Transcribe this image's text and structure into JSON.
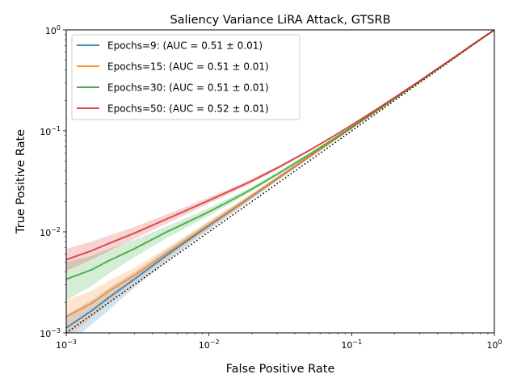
{
  "chart_data": {
    "type": "line",
    "title": "Saliency Variance LiRA Attack, GTSRB",
    "xlabel": "False Positive Rate",
    "ylabel": "True Positive Rate",
    "xscale": "log",
    "yscale": "log",
    "xlim": [
      0.001,
      1
    ],
    "ylim": [
      0.001,
      1
    ],
    "grid": false,
    "legend_position": "top-left",
    "x_ticks": [
      {
        "value": 0.001,
        "base": "10",
        "exp": "−3"
      },
      {
        "value": 0.01,
        "base": "10",
        "exp": "−2"
      },
      {
        "value": 0.1,
        "base": "10",
        "exp": "−1"
      },
      {
        "value": 1,
        "base": "10",
        "exp": "0"
      }
    ],
    "y_ticks": [
      {
        "value": 0.001,
        "base": "10",
        "exp": "−3"
      },
      {
        "value": 0.01,
        "base": "10",
        "exp": "−2"
      },
      {
        "value": 0.1,
        "base": "10",
        "exp": "−1"
      },
      {
        "value": 1,
        "base": "10",
        "exp": "0"
      }
    ],
    "x": [
      0.001,
      0.0015,
      0.002,
      0.003,
      0.005,
      0.007,
      0.01,
      0.015,
      0.02,
      0.03,
      0.05,
      0.07,
      0.1,
      0.15,
      0.2,
      0.3,
      0.5,
      0.7,
      1.0
    ],
    "series": [
      {
        "name": "Epochs=9: (AUC = 0.51 ± 0.01)",
        "color": "#1f77b4",
        "y": [
          0.00112,
          0.00165,
          0.00225,
          0.0034,
          0.0058,
          0.0081,
          0.0115,
          0.017,
          0.0225,
          0.0335,
          0.055,
          0.076,
          0.107,
          0.158,
          0.209,
          0.31,
          0.51,
          0.71,
          1.0
        ],
        "y_low": [
          0.00075,
          0.0012,
          0.0017,
          0.0028,
          0.005,
          0.0072,
          0.0104,
          0.0157,
          0.0211,
          0.0318,
          0.0528,
          0.0736,
          0.1045,
          0.1555,
          0.2065,
          0.307,
          0.507,
          0.707,
          1.0
        ],
        "y_high": [
          0.0015,
          0.0021,
          0.0028,
          0.004,
          0.0066,
          0.009,
          0.0126,
          0.0183,
          0.0239,
          0.0352,
          0.0572,
          0.0784,
          0.1095,
          0.1605,
          0.2115,
          0.313,
          0.513,
          0.713,
          1.0
        ]
      },
      {
        "name": "Epochs=15: (AUC = 0.51 ± 0.01)",
        "color": "#ff7f0e",
        "y": [
          0.00145,
          0.00195,
          0.0026,
          0.0037,
          0.0061,
          0.0084,
          0.0118,
          0.0172,
          0.0227,
          0.0337,
          0.0552,
          0.0762,
          0.1072,
          0.158,
          0.209,
          0.31,
          0.51,
          0.71,
          1.0
        ],
        "y_low": [
          0.0009,
          0.0014,
          0.002,
          0.0031,
          0.0053,
          0.0075,
          0.0107,
          0.0159,
          0.0213,
          0.032,
          0.053,
          0.0738,
          0.1047,
          0.1555,
          0.2065,
          0.307,
          0.507,
          0.707,
          1.0
        ],
        "y_high": [
          0.0021,
          0.0026,
          0.0033,
          0.0044,
          0.0069,
          0.0093,
          0.0129,
          0.0185,
          0.0241,
          0.0354,
          0.0574,
          0.0786,
          0.1097,
          0.1605,
          0.2115,
          0.313,
          0.513,
          0.713,
          1.0
        ]
      },
      {
        "name": "Epochs=30: (AUC = 0.51 ± 0.01)",
        "color": "#2ca02c",
        "y": [
          0.0034,
          0.0042,
          0.0052,
          0.0068,
          0.0099,
          0.0124,
          0.0158,
          0.0213,
          0.0265,
          0.0372,
          0.058,
          0.0785,
          0.109,
          0.159,
          0.21,
          0.31,
          0.51,
          0.71,
          1.0
        ],
        "y_low": [
          0.0021,
          0.0029,
          0.0039,
          0.0056,
          0.0086,
          0.0111,
          0.0145,
          0.02,
          0.0252,
          0.0358,
          0.0565,
          0.077,
          0.107,
          0.157,
          0.2075,
          0.307,
          0.507,
          0.707,
          1.0
        ],
        "y_high": [
          0.005,
          0.0058,
          0.0068,
          0.0083,
          0.0113,
          0.0138,
          0.0172,
          0.0227,
          0.0279,
          0.0387,
          0.0596,
          0.08,
          0.111,
          0.161,
          0.2125,
          0.313,
          0.513,
          0.713,
          1.0
        ]
      },
      {
        "name": "Epochs=50: (AUC = 0.52 ± 0.01)",
        "color": "#d62728",
        "y": [
          0.0053,
          0.0065,
          0.0077,
          0.0097,
          0.0133,
          0.0164,
          0.0205,
          0.0265,
          0.032,
          0.0428,
          0.0635,
          0.084,
          0.114,
          0.164,
          0.214,
          0.313,
          0.512,
          0.711,
          1.0
        ],
        "y_low": [
          0.0041,
          0.0053,
          0.0065,
          0.0085,
          0.012,
          0.015,
          0.0191,
          0.025,
          0.0305,
          0.0413,
          0.062,
          0.0825,
          0.112,
          0.162,
          0.2115,
          0.31,
          0.509,
          0.708,
          1.0
        ],
        "y_high": [
          0.0068,
          0.008,
          0.0092,
          0.0112,
          0.0148,
          0.0179,
          0.022,
          0.028,
          0.0336,
          0.0444,
          0.0651,
          0.0856,
          0.116,
          0.166,
          0.2165,
          0.316,
          0.515,
          0.714,
          1.0
        ]
      }
    ],
    "reference_line": {
      "style": "dotted",
      "color": "#000000",
      "from": [
        0.001,
        0.001
      ],
      "to": [
        1,
        1
      ]
    }
  }
}
